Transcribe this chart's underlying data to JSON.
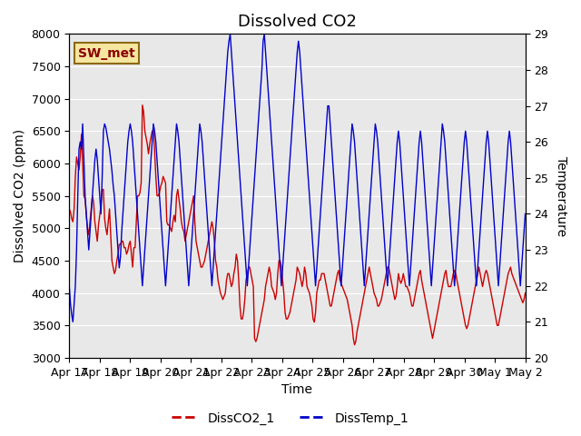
{
  "title": "Dissolved CO2",
  "xlabel": "Time",
  "ylabel_left": "Dissolved CO2 (ppm)",
  "ylabel_right": "Temperature",
  "annotation_text": "SW_met",
  "ylim_left": [
    3000,
    8000
  ],
  "ylim_right": [
    20.0,
    29.0
  ],
  "xlim": [
    0,
    15
  ],
  "x_tick_labels": [
    "Apr 17",
    "Apr 18",
    "Apr 19",
    "Apr 20",
    "Apr 21",
    "Apr 22",
    "Apr 23",
    "Apr 24",
    "Apr 25",
    "Apr 26",
    "Apr 27",
    "Apr 28",
    "Apr 29",
    "Apr 30",
    "May 1",
    "May 2"
  ],
  "background_color": "#e8e8e8",
  "line1_color": "#cc0000",
  "line2_color": "#0000cc",
  "legend_labels": [
    "DissCO2_1",
    "DissTemp_1"
  ],
  "title_fontsize": 13,
  "label_fontsize": 10,
  "tick_fontsize": 9,
  "co2_data": [
    5300,
    5250,
    5150,
    5100,
    5300,
    5800,
    6100,
    6000,
    5900,
    6100,
    6450,
    6000,
    5500,
    5450,
    5200,
    5000,
    4900,
    5100,
    5300,
    5500,
    5400,
    5100,
    4950,
    4800,
    5050,
    5200,
    5350,
    5600,
    5600,
    5150,
    5000,
    4900,
    5100,
    5300,
    4900,
    4500,
    4400,
    4300,
    4350,
    4500,
    4600,
    4750,
    4750,
    4800,
    4800,
    4700,
    4700,
    4600,
    4650,
    4750,
    4800,
    4600,
    4400,
    4700,
    4700,
    5100,
    5500,
    5500,
    5550,
    5700,
    6900,
    6800,
    6500,
    6400,
    6300,
    6150,
    6300,
    6400,
    6500,
    6500,
    6200,
    5800,
    5500,
    5500,
    5550,
    5650,
    5700,
    5800,
    5750,
    5700,
    5100,
    5050,
    5050,
    5000,
    4950,
    5100,
    5200,
    5100,
    5500,
    5600,
    5450,
    5300,
    5100,
    5000,
    4950,
    4800,
    4900,
    5000,
    5100,
    5200,
    5300,
    5400,
    5500,
    5100,
    4800,
    4700,
    4600,
    4500,
    4400,
    4400,
    4450,
    4500,
    4600,
    4700,
    4800,
    4900,
    5000,
    5100,
    5000,
    4800,
    4500,
    4400,
    4200,
    4100,
    4000,
    3950,
    3900,
    3950,
    4000,
    4200,
    4300,
    4300,
    4200,
    4100,
    4150,
    4300,
    4400,
    4600,
    4500,
    4200,
    3800,
    3600,
    3600,
    3700,
    3900,
    4200,
    4300,
    4400,
    4400,
    4300,
    4200,
    4100,
    3300,
    3250,
    3300,
    3400,
    3500,
    3600,
    3700,
    3800,
    3900,
    4100,
    4200,
    4300,
    4400,
    4300,
    4100,
    4050,
    4000,
    3900,
    4000,
    4300,
    4500,
    4500,
    4400,
    4200,
    4000,
    3700,
    3600,
    3600,
    3650,
    3700,
    3800,
    3900,
    4000,
    4100,
    4200,
    4400,
    4350,
    4300,
    4200,
    4100,
    4200,
    4400,
    4300,
    4100,
    4050,
    4000,
    3900,
    3800,
    3600,
    3550,
    3700,
    4000,
    4100,
    4200,
    4200,
    4300,
    4300,
    4300,
    4200,
    4100,
    4000,
    3900,
    3800,
    3800,
    3900,
    4000,
    4100,
    4200,
    4300,
    4350,
    4200,
    4150,
    4100,
    4050,
    4000,
    3950,
    3900,
    3800,
    3700,
    3600,
    3500,
    3300,
    3200,
    3250,
    3400,
    3500,
    3600,
    3700,
    3800,
    3900,
    4000,
    4100,
    4200,
    4300,
    4400,
    4300,
    4200,
    4100,
    4000,
    3950,
    3900,
    3800,
    3800,
    3850,
    3900,
    4000,
    4100,
    4200,
    4300,
    4400,
    4400,
    4300,
    4200,
    4100,
    4000,
    3900,
    3950,
    4100,
    4300,
    4200,
    4150,
    4200,
    4300,
    4200,
    4100,
    4100,
    4050,
    4000,
    3900,
    3800,
    3800,
    3900,
    4000,
    4100,
    4200,
    4300,
    4350,
    4200,
    4100,
    4000,
    3900,
    3800,
    3700,
    3600,
    3500,
    3400,
    3300,
    3400,
    3500,
    3600,
    3700,
    3800,
    3900,
    4000,
    4100,
    4200,
    4300,
    4350,
    4200,
    4100,
    4100,
    4100,
    4200,
    4300,
    4350,
    4300,
    4200,
    4100,
    4000,
    3900,
    3800,
    3700,
    3600,
    3500,
    3450,
    3500,
    3600,
    3700,
    3800,
    3900,
    4000,
    4100,
    4200,
    4300,
    4400,
    4300,
    4200,
    4100,
    4200,
    4300,
    4350,
    4300,
    4200,
    4100,
    4000,
    3900,
    3800,
    3700,
    3600,
    3500,
    3500,
    3600,
    3700,
    3800,
    3900,
    4000,
    4100,
    4200,
    4300,
    4350,
    4400,
    4300,
    4250,
    4200,
    4150,
    4100,
    4050,
    4000,
    3950,
    3900,
    3850,
    3900,
    4000
  ],
  "temp_data": [
    22.0,
    21.5,
    21.2,
    21.0,
    21.5,
    22.0,
    23.0,
    24.5,
    25.8,
    26.0,
    25.8,
    26.5,
    25.5,
    24.5,
    24.0,
    23.5,
    23.0,
    23.5,
    24.0,
    24.5,
    25.0,
    25.5,
    25.8,
    25.5,
    25.0,
    24.5,
    24.0,
    25.0,
    26.3,
    26.5,
    26.4,
    26.2,
    26.0,
    25.8,
    25.5,
    25.2,
    24.8,
    24.5,
    24.0,
    23.5,
    23.0,
    22.5,
    22.8,
    23.5,
    24.0,
    24.5,
    25.0,
    25.5,
    26.0,
    26.3,
    26.5,
    26.3,
    26.0,
    25.5,
    25.0,
    24.5,
    24.0,
    23.5,
    23.0,
    22.5,
    22.0,
    22.5,
    23.0,
    23.5,
    24.0,
    24.5,
    25.0,
    25.5,
    26.0,
    26.5,
    26.3,
    26.0,
    25.5,
    25.0,
    24.5,
    24.0,
    23.5,
    23.0,
    22.5,
    22.0,
    22.5,
    23.0,
    23.5,
    24.0,
    24.5,
    25.0,
    25.5,
    26.0,
    26.5,
    26.3,
    26.0,
    25.5,
    25.0,
    24.5,
    24.0,
    23.5,
    23.0,
    22.5,
    22.0,
    22.5,
    23.0,
    23.5,
    24.0,
    24.5,
    25.0,
    25.5,
    26.0,
    26.5,
    26.3,
    26.0,
    25.5,
    25.0,
    24.5,
    24.0,
    23.5,
    23.0,
    22.5,
    22.0,
    22.5,
    23.0,
    23.5,
    24.0,
    24.5,
    25.0,
    25.5,
    26.0,
    26.5,
    27.0,
    27.5,
    28.0,
    28.5,
    28.8,
    29.0,
    28.5,
    28.0,
    27.5,
    27.0,
    26.5,
    26.0,
    25.5,
    25.0,
    24.5,
    24.0,
    23.5,
    23.0,
    22.5,
    22.0,
    22.5,
    23.0,
    23.5,
    24.0,
    24.5,
    25.0,
    25.5,
    26.0,
    26.5,
    27.0,
    27.5,
    28.0,
    28.8,
    29.0,
    28.5,
    28.0,
    27.5,
    27.0,
    26.5,
    26.0,
    25.5,
    25.0,
    24.5,
    24.0,
    23.5,
    23.0,
    22.5,
    22.0,
    22.5,
    23.0,
    23.5,
    24.0,
    24.5,
    25.0,
    25.5,
    26.0,
    26.5,
    27.0,
    27.5,
    28.0,
    28.5,
    28.8,
    28.5,
    28.0,
    27.5,
    27.0,
    26.5,
    26.0,
    25.5,
    25.0,
    24.5,
    24.0,
    23.5,
    23.0,
    22.5,
    22.0,
    22.5,
    23.0,
    23.5,
    24.0,
    24.5,
    25.0,
    25.5,
    26.0,
    26.5,
    27.0,
    27.0,
    26.5,
    26.0,
    25.5,
    25.0,
    24.5,
    24.0,
    23.5,
    23.0,
    22.5,
    22.0,
    22.5,
    23.0,
    23.5,
    24.0,
    24.5,
    25.0,
    25.5,
    26.0,
    26.5,
    26.3,
    26.0,
    25.5,
    25.0,
    24.5,
    24.0,
    23.5,
    23.0,
    22.5,
    22.0,
    22.5,
    23.0,
    23.5,
    24.0,
    24.5,
    25.0,
    25.5,
    26.0,
    26.5,
    26.3,
    26.0,
    25.5,
    25.0,
    24.5,
    24.0,
    23.5,
    23.0,
    22.5,
    22.0,
    22.5,
    23.0,
    23.5,
    24.0,
    24.5,
    25.0,
    25.5,
    26.0,
    26.3,
    26.0,
    25.5,
    25.0,
    24.5,
    24.0,
    23.5,
    23.0,
    22.5,
    22.0,
    22.5,
    23.0,
    23.5,
    24.0,
    24.5,
    25.0,
    25.5,
    26.0,
    26.3,
    26.0,
    25.5,
    25.0,
    24.5,
    24.0,
    23.5,
    23.0,
    22.5,
    22.0,
    22.5,
    23.0,
    23.5,
    24.0,
    24.5,
    25.0,
    25.5,
    26.0,
    26.5,
    26.3,
    26.0,
    25.5,
    25.0,
    24.5,
    24.0,
    23.5,
    23.0,
    22.5,
    22.0,
    22.5,
    23.0,
    23.5,
    24.0,
    24.5,
    25.0,
    25.5,
    26.0,
    26.3,
    26.0,
    25.5,
    25.0,
    24.5,
    24.0,
    23.5,
    23.0,
    22.5,
    22.0,
    22.5,
    23.0,
    23.5,
    24.0,
    24.5,
    25.0,
    25.5,
    26.0,
    26.3,
    26.0,
    25.5,
    25.0,
    24.5,
    24.0,
    23.5,
    23.0,
    22.5,
    22.0,
    22.5,
    23.0,
    23.5,
    24.0,
    24.5,
    25.0,
    25.5,
    26.0,
    26.3,
    26.0,
    25.5,
    25.0,
    24.5,
    24.0,
    23.5,
    23.0,
    22.5,
    22.0,
    22.5,
    23.0,
    23.5,
    24.0
  ]
}
